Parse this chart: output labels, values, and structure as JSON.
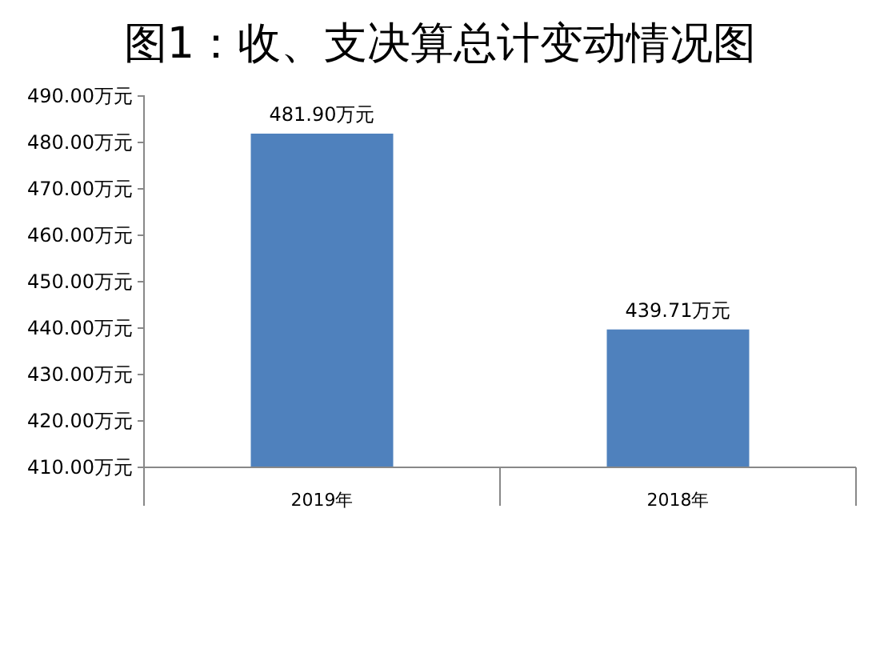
{
  "chart_data": {
    "type": "bar",
    "title": "图1：收、支决算总计变动情况图",
    "categories": [
      "2019年",
      "2018年"
    ],
    "values": [
      481.9,
      439.71
    ],
    "value_labels": [
      "481.90万元",
      "439.71万元"
    ],
    "color": "#4f81bd",
    "ylim": [
      410,
      490
    ],
    "yticks": [
      {
        "value": 410,
        "label": "410.00万元"
      },
      {
        "value": 420,
        "label": "420.00万元"
      },
      {
        "value": 430,
        "label": "430.00万元"
      },
      {
        "value": 440,
        "label": "440.00万元"
      },
      {
        "value": 450,
        "label": "450.00万元"
      },
      {
        "value": 460,
        "label": "460.00万元"
      },
      {
        "value": 470,
        "label": "470.00万元"
      },
      {
        "value": 480,
        "label": "480.00万元"
      },
      {
        "value": 490,
        "label": "490.00万元"
      }
    ],
    "grid": false
  }
}
